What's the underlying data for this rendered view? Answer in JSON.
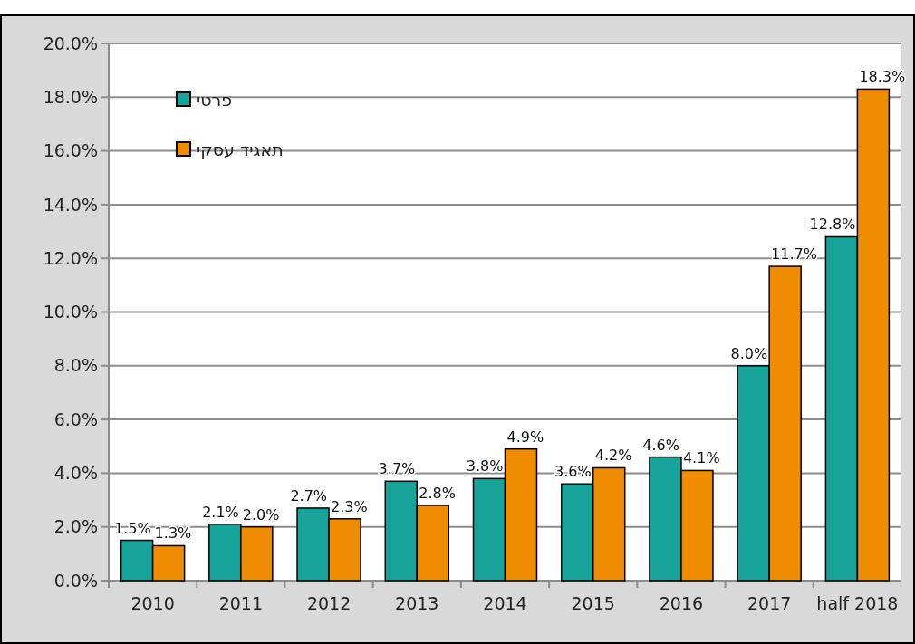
{
  "chart_data": {
    "type": "bar",
    "categories": [
      "2010",
      "2011",
      "2012",
      "2013",
      "2014",
      "2015",
      "2016",
      "2017",
      "half 2018"
    ],
    "series": [
      {
        "name": "פרטי",
        "color": "#17a39a",
        "values": [
          1.5,
          2.1,
          2.7,
          3.7,
          3.8,
          3.6,
          4.6,
          8.0,
          12.8
        ],
        "value_labels": [
          "1.5%",
          "2.1%",
          "2.7%",
          "3.7%",
          "3.8%",
          "3.6%",
          "4.6%",
          "8.0%",
          "12.8%"
        ]
      },
      {
        "name": "תאגיד עסקי",
        "color": "#f08c00",
        "values": [
          1.3,
          2.0,
          2.3,
          2.8,
          4.9,
          4.2,
          4.1,
          11.7,
          18.3
        ],
        "value_labels": [
          "1.3%",
          "2.0%",
          "2.3%",
          "2.8%",
          "4.9%",
          "4.2%",
          "4.1%",
          "11.7%",
          "18.3%"
        ]
      }
    ],
    "ylim": [
      0,
      20
    ],
    "yticks": [
      {
        "value": 0,
        "label": "0.0%"
      },
      {
        "value": 2,
        "label": "2.0%"
      },
      {
        "value": 4,
        "label": "4.0%"
      },
      {
        "value": 6,
        "label": "6.0%"
      },
      {
        "value": 8,
        "label": "8.0%"
      },
      {
        "value": 10,
        "label": "10.0%"
      },
      {
        "value": 12,
        "label": "12.0%"
      },
      {
        "value": 14,
        "label": "14.0%"
      },
      {
        "value": 16,
        "label": "16.0%"
      },
      {
        "value": 18,
        "label": "18.0%"
      },
      {
        "value": 20,
        "label": "20.0%"
      }
    ],
    "grid": "y",
    "legend": "top left"
  }
}
